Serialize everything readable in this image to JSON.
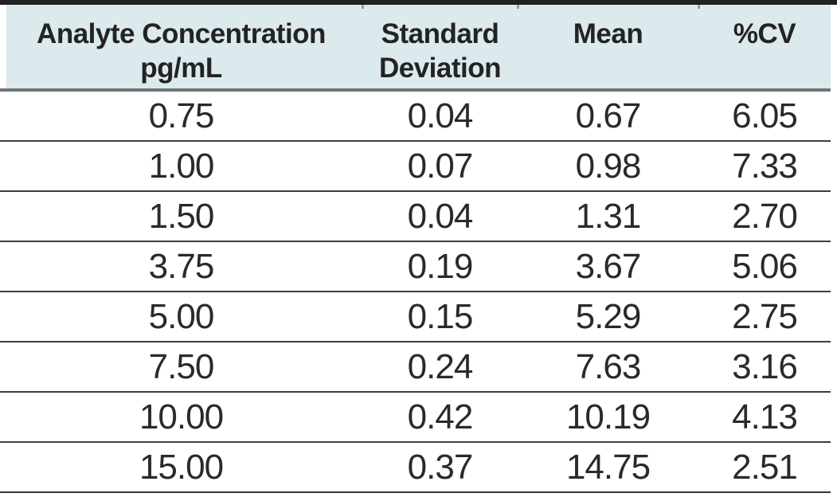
{
  "chart_data": {
    "type": "table",
    "title": "",
    "columns": [
      "Analyte Concentration pg/mL",
      "Standard Deviation",
      "Mean",
      "%CV"
    ],
    "rows": [
      [
        "0.75",
        "0.04",
        "0.67",
        "6.05"
      ],
      [
        "1.00",
        "0.07",
        "0.98",
        "7.33"
      ],
      [
        "1.50",
        "0.04",
        "1.31",
        "2.70"
      ],
      [
        "3.75",
        "0.19",
        "3.67",
        "5.06"
      ],
      [
        "5.00",
        "0.15",
        "5.29",
        "2.75"
      ],
      [
        "7.50",
        "0.24",
        "7.63",
        "3.16"
      ],
      [
        "10.00",
        "0.42",
        "10.19",
        "4.13"
      ],
      [
        "15.00",
        "0.37",
        "14.75",
        "2.51"
      ]
    ]
  },
  "header": {
    "col1": "Analyte Concentration\npg/mL",
    "col2": "Standard\nDeviation",
    "col3": "Mean",
    "col4": "%CV"
  },
  "rows": [
    {
      "conc": "0.75",
      "sd": "0.04",
      "mean": "0.67",
      "cv": "6.05"
    },
    {
      "conc": "1.00",
      "sd": "0.07",
      "mean": "0.98",
      "cv": "7.33"
    },
    {
      "conc": "1.50",
      "sd": "0.04",
      "mean": "1.31",
      "cv": "2.70"
    },
    {
      "conc": "3.75",
      "sd": "0.19",
      "mean": "3.67",
      "cv": "5.06"
    },
    {
      "conc": "5.00",
      "sd": "0.15",
      "mean": "5.29",
      "cv": "2.75"
    },
    {
      "conc": "7.50",
      "sd": "0.24",
      "mean": "7.63",
      "cv": "3.16"
    },
    {
      "conc": "10.00",
      "sd": "0.42",
      "mean": "10.19",
      "cv": "4.13"
    },
    {
      "conc": "15.00",
      "sd": "0.37",
      "mean": "14.75",
      "cv": "2.51"
    }
  ],
  "colors": {
    "header_bg": "#dce9ed",
    "top_border": "#212121",
    "header_bottom_border": "#6d767b",
    "row_separator": "#3e3e3e",
    "text": "#232323"
  }
}
